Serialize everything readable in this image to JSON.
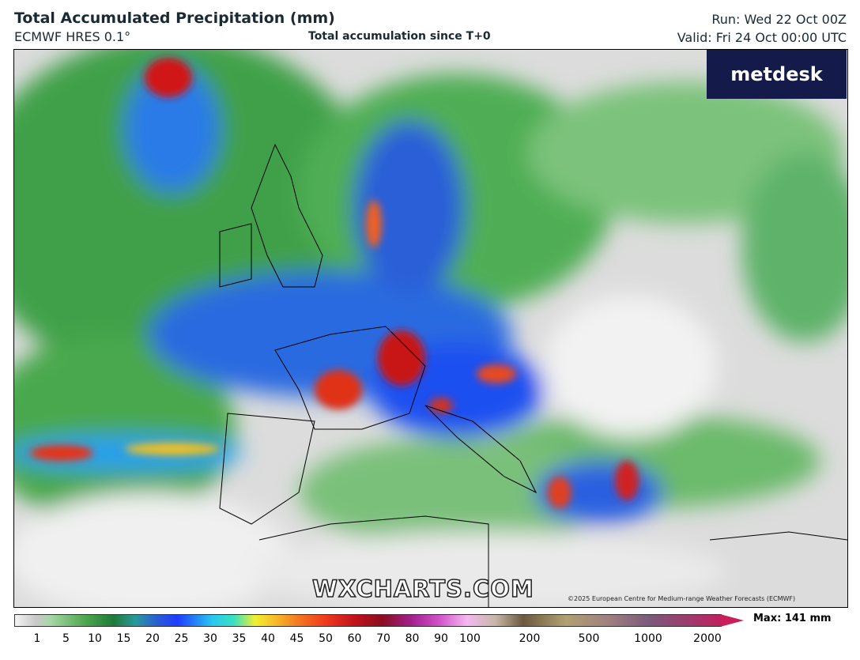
{
  "header": {
    "title": "Total Accumulated Precipitation (mm)",
    "model": "ECMWF HRES 0.1°",
    "subtitle": "Total accumulation since T+0",
    "run": "Run: Wed 22 Oct 00Z",
    "valid": "Valid: Fri 24 Oct 00:00 UTC"
  },
  "map": {
    "logo": "metdesk",
    "watermark": "WXCHARTS.COM",
    "copyright": "©2025 European Centre for Medium-range Weather Forecasts (ECMWF)"
  },
  "legend": {
    "max": "Max: 141 mm",
    "ticks": [
      "1",
      "5",
      "10",
      "15",
      "20",
      "25",
      "30",
      "35",
      "40",
      "45",
      "50",
      "60",
      "70",
      "80",
      "90",
      "100",
      "200",
      "500",
      "1000",
      "2000"
    ]
  }
}
